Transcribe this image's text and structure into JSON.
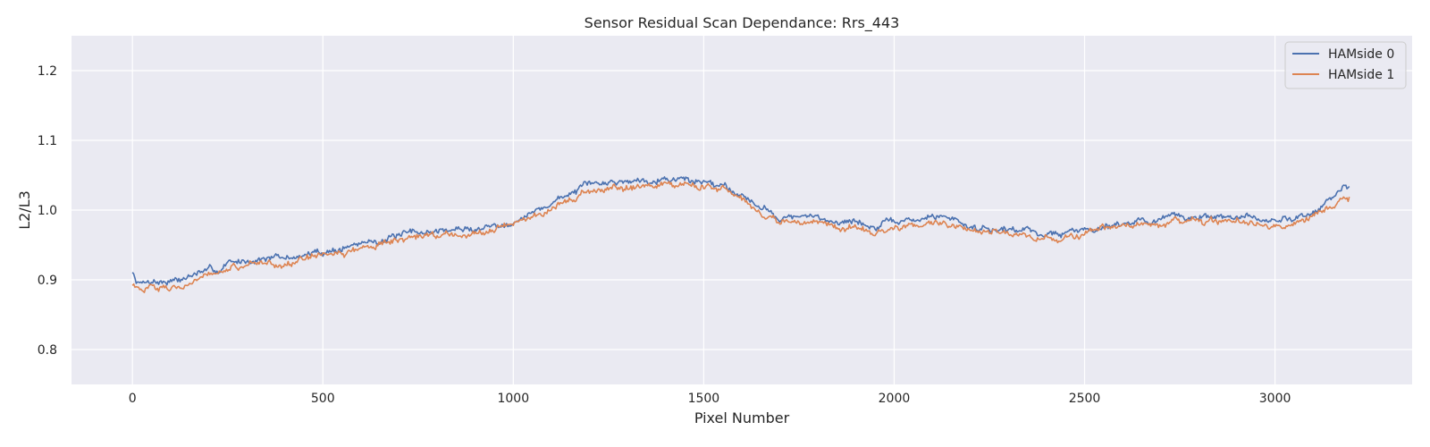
{
  "chart_data": {
    "type": "line",
    "title": "Sensor Residual Scan Dependance: Rrs_443",
    "xlabel": "Pixel Number",
    "ylabel": "L2/L3",
    "xlim": [
      -160,
      3360
    ],
    "ylim": [
      0.75,
      1.25
    ],
    "xticks": [
      0,
      500,
      1000,
      1500,
      2000,
      2500,
      3000
    ],
    "xtick_labels": [
      "0",
      "500",
      "1000",
      "1500",
      "2000",
      "2500",
      "3000"
    ],
    "yticks": [
      0.8,
      0.9,
      1.0,
      1.1,
      1.2
    ],
    "ytick_labels": [
      "0.8",
      "0.9",
      "1.0",
      "1.1",
      "1.2"
    ],
    "grid": true,
    "legend_position": "top-right",
    "series": [
      {
        "name": "HAMside 0",
        "color": "#4c72b0",
        "x": [
          0,
          10,
          25,
          50,
          75,
          100,
          125,
          150,
          175,
          200,
          225,
          250,
          275,
          300,
          350,
          400,
          450,
          500,
          550,
          600,
          650,
          700,
          750,
          800,
          850,
          900,
          950,
          1000,
          1050,
          1100,
          1150,
          1200,
          1250,
          1300,
          1350,
          1400,
          1450,
          1500,
          1550,
          1600,
          1625,
          1650,
          1700,
          1750,
          1800,
          1850,
          1900,
          1950,
          2000,
          2050,
          2100,
          2150,
          2200,
          2250,
          2300,
          2350,
          2400,
          2450,
          2500,
          2550,
          2600,
          2650,
          2700,
          2750,
          2800,
          2850,
          2900,
          2950,
          3000,
          3050,
          3100,
          3150,
          3180,
          3195
        ],
        "y": [
          0.91,
          0.9,
          0.895,
          0.9,
          0.897,
          0.9,
          0.9,
          0.905,
          0.91,
          0.913,
          0.912,
          0.925,
          0.925,
          0.928,
          0.932,
          0.93,
          0.935,
          0.94,
          0.945,
          0.952,
          0.958,
          0.962,
          0.968,
          0.97,
          0.972,
          0.973,
          0.978,
          0.985,
          0.995,
          1.01,
          1.025,
          1.035,
          1.04,
          1.042,
          1.045,
          1.046,
          1.044,
          1.04,
          1.037,
          1.022,
          1.015,
          1.004,
          0.99,
          0.99,
          0.988,
          0.985,
          0.983,
          0.975,
          0.983,
          0.985,
          0.99,
          0.99,
          0.975,
          0.975,
          0.973,
          0.972,
          0.965,
          0.967,
          0.972,
          0.978,
          0.982,
          0.985,
          0.986,
          0.99,
          0.99,
          0.99,
          0.99,
          0.986,
          0.983,
          0.99,
          0.998,
          1.015,
          1.032,
          1.034
        ]
      },
      {
        "name": "HAMside 1",
        "color": "#dd8452",
        "x": [
          0,
          10,
          25,
          50,
          75,
          100,
          125,
          150,
          175,
          200,
          225,
          250,
          275,
          300,
          350,
          400,
          450,
          500,
          550,
          600,
          650,
          700,
          750,
          800,
          850,
          900,
          950,
          1000,
          1050,
          1100,
          1150,
          1200,
          1250,
          1300,
          1350,
          1400,
          1450,
          1500,
          1550,
          1600,
          1625,
          1650,
          1700,
          1750,
          1800,
          1850,
          1900,
          1950,
          2000,
          2050,
          2100,
          2150,
          2200,
          2250,
          2300,
          2350,
          2400,
          2450,
          2500,
          2550,
          2600,
          2650,
          2700,
          2750,
          2800,
          2850,
          2900,
          2950,
          3000,
          3050,
          3100,
          3150,
          3180,
          3195
        ],
        "y": [
          0.895,
          0.888,
          0.883,
          0.888,
          0.89,
          0.89,
          0.893,
          0.897,
          0.903,
          0.906,
          0.905,
          0.915,
          0.918,
          0.92,
          0.925,
          0.925,
          0.928,
          0.933,
          0.938,
          0.945,
          0.95,
          0.955,
          0.963,
          0.965,
          0.965,
          0.966,
          0.975,
          0.983,
          0.99,
          1.002,
          1.017,
          1.028,
          1.032,
          1.033,
          1.036,
          1.039,
          1.036,
          1.033,
          1.027,
          1.013,
          1.005,
          0.995,
          0.982,
          0.982,
          0.979,
          0.976,
          0.975,
          0.966,
          0.975,
          0.978,
          0.982,
          0.983,
          0.967,
          0.967,
          0.966,
          0.965,
          0.958,
          0.96,
          0.966,
          0.972,
          0.976,
          0.978,
          0.98,
          0.983,
          0.983,
          0.982,
          0.982,
          0.977,
          0.976,
          0.983,
          0.99,
          1.005,
          1.017,
          1.019
        ]
      }
    ]
  }
}
